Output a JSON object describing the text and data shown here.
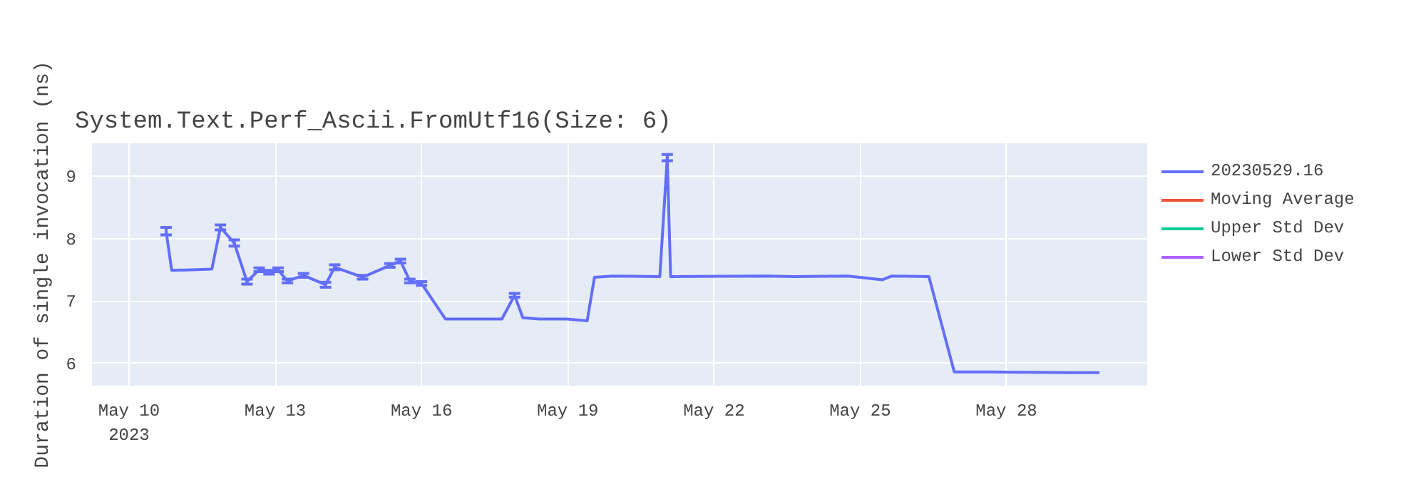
{
  "chart_data": {
    "type": "line",
    "title": "System.Text.Perf_Ascii.FromUtf16(Size: 6)",
    "ylabel": "Duration of single invocation (ns)",
    "x": [
      "2023-05-10T18:15",
      "2023-05-10T21:00",
      "2023-05-11T16:45",
      "2023-05-11T21:00",
      "2023-05-12T03:50",
      "2023-05-12T10:05",
      "2023-05-12T16:05",
      "2023-05-12T20:55",
      "2023-05-13T01:25",
      "2023-05-13T06:00",
      "2023-05-13T13:55",
      "2023-05-14T00:45",
      "2023-05-14T05:15",
      "2023-05-14T19:00",
      "2023-05-15T08:25",
      "2023-05-15T13:40",
      "2023-05-15T18:15",
      "2023-05-16T00:00",
      "2023-05-16T11:45",
      "2023-05-17T15:35",
      "2023-05-17T21:50",
      "2023-05-18T01:55",
      "2023-05-18T09:50",
      "2023-05-18T23:30",
      "2023-05-19T09:35",
      "2023-05-19T13:10",
      "2023-05-19T22:05",
      "2023-05-20T21:20",
      "2023-05-21T01:00",
      "2023-05-21T02:40",
      "2023-05-23T03:20",
      "2023-05-23T14:50",
      "2023-05-24T18:00",
      "2023-05-25T11:00",
      "2023-05-25T15:35",
      "2023-05-26T09:50",
      "2023-05-26T22:20",
      "2023-05-27T14:10",
      "2023-05-29T07:10",
      "2023-05-29T21:50"
    ],
    "series": [
      {
        "name": "20230529.16",
        "color": "#636efa",
        "values": [
          8.12,
          7.49,
          7.51,
          8.18,
          7.93,
          7.31,
          7.5,
          7.46,
          7.5,
          7.32,
          7.41,
          7.26,
          7.54,
          7.38,
          7.57,
          7.64,
          7.32,
          7.28,
          6.71,
          6.71,
          7.09,
          6.73,
          6.71,
          6.71,
          6.68,
          7.38,
          7.4,
          7.39,
          9.3,
          7.39,
          7.4,
          7.39,
          7.4,
          7.34,
          7.4,
          7.39,
          5.86,
          5.86,
          5.85,
          5.85
        ],
        "errors": [
          0.06,
          null,
          null,
          0.04,
          0.05,
          0.04,
          0.03,
          0.03,
          0.03,
          0.03,
          0.03,
          0.04,
          0.04,
          0.03,
          0.03,
          0.03,
          0.03,
          0.03,
          null,
          null,
          0.03,
          null,
          null,
          null,
          null,
          null,
          null,
          null,
          0.05,
          null,
          null,
          null,
          null,
          null,
          null,
          null,
          null,
          null,
          null,
          null
        ]
      },
      {
        "name": "Moving Average",
        "color": "#ef553b",
        "values": [
          null,
          null,
          null,
          null,
          null,
          null,
          null,
          null,
          null,
          null,
          null,
          null,
          null,
          null,
          null,
          null,
          null,
          null,
          null,
          null,
          null,
          null,
          null,
          null,
          null,
          null,
          null,
          null,
          null,
          null,
          null,
          null,
          null,
          null,
          null,
          null,
          null,
          null,
          null,
          null
        ]
      },
      {
        "name": "Upper Std Dev",
        "color": "#00cc96",
        "values": [
          null,
          null,
          null,
          null,
          null,
          null,
          null,
          null,
          null,
          null,
          null,
          null,
          null,
          null,
          null,
          null,
          null,
          null,
          null,
          null,
          null,
          null,
          null,
          null,
          null,
          null,
          null,
          null,
          null,
          null,
          null,
          null,
          null,
          null,
          null,
          null,
          null,
          null,
          null,
          null
        ]
      },
      {
        "name": "Lower Std Dev",
        "color": "#ab63fa",
        "values": [
          null,
          null,
          null,
          null,
          null,
          null,
          null,
          null,
          null,
          null,
          null,
          null,
          null,
          null,
          null,
          null,
          null,
          null,
          null,
          null,
          null,
          null,
          null,
          null,
          null,
          null,
          null,
          null,
          null,
          null,
          null,
          null,
          null,
          null,
          null,
          null,
          null,
          null,
          null,
          null
        ]
      }
    ],
    "xlim": [
      "2023-05-09T05:45",
      "2023-05-30T21:20"
    ],
    "xticks": [
      {
        "value": "2023-05-10",
        "label": "May 10\n2023"
      },
      {
        "value": "2023-05-13",
        "label": "May 13"
      },
      {
        "value": "2023-05-16",
        "label": "May 16"
      },
      {
        "value": "2023-05-19",
        "label": "May 19"
      },
      {
        "value": "2023-05-22",
        "label": "May 22"
      },
      {
        "value": "2023-05-25",
        "label": "May 25"
      },
      {
        "value": "2023-05-28",
        "label": "May 28"
      }
    ],
    "ylim": [
      5.64,
      9.53
    ],
    "yticks": [
      6,
      7,
      8,
      9
    ],
    "grid": true,
    "legend": "top right",
    "marker": "none",
    "line_style": "solid"
  }
}
